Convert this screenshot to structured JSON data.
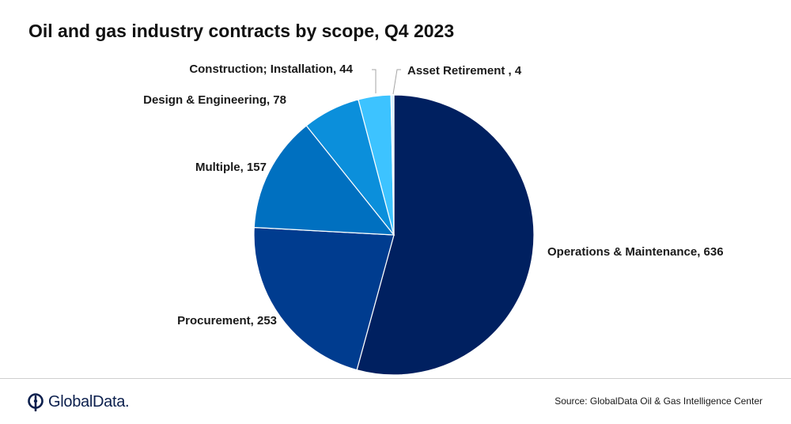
{
  "title": "Oil and gas industry contracts by scope, Q4 2023",
  "source": "Source:  GlobalData Oil & Gas Intelligence Center",
  "logo": {
    "text": "GlobalData.",
    "icon": "globaldata-logo-icon"
  },
  "colors": {
    "ops": "#002060",
    "procurement": "#003C8F",
    "multiple": "#0070C0",
    "design": "#0B8FDB",
    "construction": "#3DC3FF",
    "asset": "#D9F2FF"
  },
  "chart_data": {
    "type": "pie",
    "title": "Oil and gas industry contracts by scope, Q4 2023",
    "slices": [
      {
        "key": "ops",
        "label": "Operations & Maintenance",
        "value": 636,
        "display": "Operations & Maintenance, 636",
        "color": "#002060"
      },
      {
        "key": "procurement",
        "label": "Procurement",
        "value": 253,
        "display": "Procurement, 253",
        "color": "#003C8F"
      },
      {
        "key": "multiple",
        "label": "Multiple",
        "value": 157,
        "display": "Multiple, 157",
        "color": "#0070C0"
      },
      {
        "key": "design",
        "label": "Design & Engineering",
        "value": 78,
        "display": "Design & Engineering, 78",
        "color": "#0B8FDB"
      },
      {
        "key": "construction",
        "label": "Construction; Installation",
        "value": 44,
        "display": "Construction; Installation, 44",
        "color": "#3DC3FF"
      },
      {
        "key": "asset",
        "label": "Asset Retirement ",
        "value": 4,
        "display": "Asset Retirement , 4",
        "color": "#D9F2FF"
      }
    ],
    "start": "12 o'clock",
    "direction": "clockwise"
  }
}
